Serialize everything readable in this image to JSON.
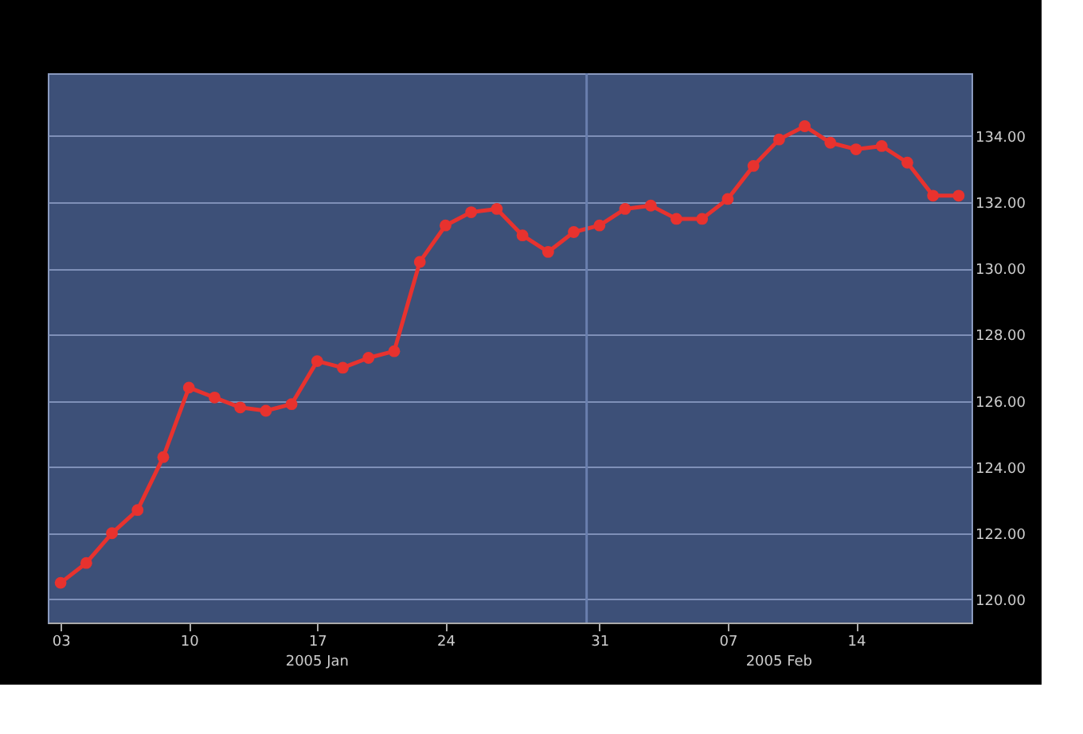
{
  "chart_data": {
    "type": "line",
    "categories": [
      "03",
      null,
      null,
      null,
      null,
      "10",
      null,
      null,
      null,
      null,
      "17",
      null,
      null,
      null,
      null,
      "24",
      null,
      null,
      null,
      null,
      null,
      "31",
      null,
      null,
      null,
      null,
      "07",
      null,
      null,
      null,
      null,
      "14",
      null,
      null,
      null,
      null
    ],
    "series": [
      {
        "color": "#e8322e",
        "values": [
          120.5,
          121.1,
          122.0,
          122.7,
          124.3,
          126.4,
          126.1,
          125.8,
          125.7,
          125.9,
          127.2,
          127.0,
          127.3,
          127.5,
          130.2,
          131.3,
          131.7,
          131.8,
          131.0,
          130.5,
          131.1,
          131.3,
          131.8,
          131.9,
          131.5,
          131.5,
          132.1,
          133.1,
          133.9,
          134.3,
          133.8,
          133.6,
          133.7,
          133.2,
          132.2,
          132.2
        ]
      }
    ],
    "ylim": [
      119.3,
      135.9
    ],
    "yticks": [
      {
        "value": 120,
        "label": "120.00"
      },
      {
        "value": 122,
        "label": "122.00"
      },
      {
        "value": 124,
        "label": "124.00"
      },
      {
        "value": 126,
        "label": "126.00"
      },
      {
        "value": 128,
        "label": "128.00"
      },
      {
        "value": 130,
        "label": "130.00"
      },
      {
        "value": 132,
        "label": "132.00"
      },
      {
        "value": 134,
        "label": "134.00"
      }
    ],
    "annotations": [
      "2005 Jan",
      "2005 Feb"
    ],
    "ref_lines": [
      {
        "axis": "x",
        "value": "31",
        "color": "#6a7fae"
      }
    ],
    "grid": "y",
    "marker": "circle",
    "line_style": "solid"
  }
}
